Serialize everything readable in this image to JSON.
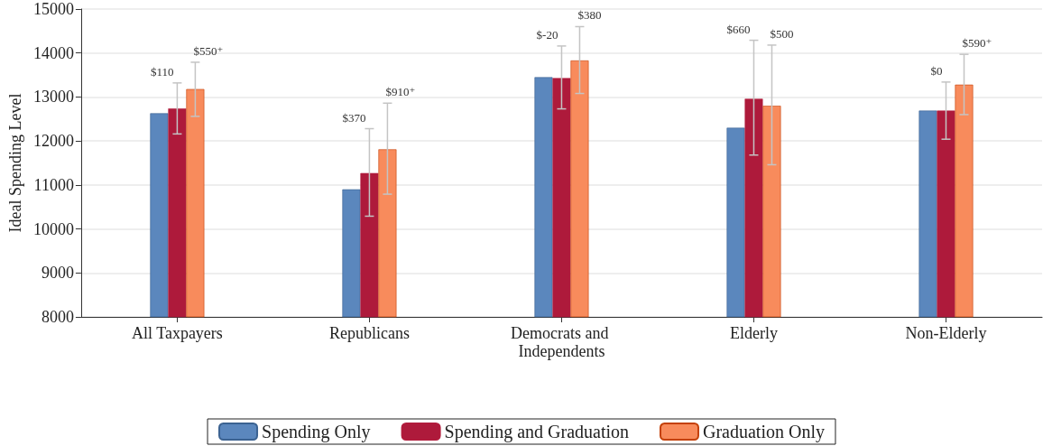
{
  "chart_data": {
    "type": "bar",
    "ylabel": "Ideal Spending Level",
    "categories": [
      "All Taxpayers",
      "Republicans",
      "Democrats and Independents",
      "Elderly",
      "Non-Elderly"
    ],
    "series": [
      {
        "name": "Spending Only",
        "color": "#5b87bd",
        "values": [
          12630,
          10900,
          13450,
          12300,
          12690
        ]
      },
      {
        "name": "Spending and Graduation",
        "color": "#ae1a3b",
        "values": [
          12740,
          11270,
          13430,
          12960,
          12690
        ],
        "errors": [
          [
            12160,
            13320
          ],
          [
            10290,
            12280
          ],
          [
            12730,
            14160
          ],
          [
            11680,
            14290
          ],
          [
            12040,
            13340
          ]
        ]
      },
      {
        "name": "Graduation Only",
        "color": "#f88b5c",
        "values": [
          13180,
          11810,
          13830,
          12800,
          13280
        ],
        "errors": [
          [
            12560,
            13790
          ],
          [
            10790,
            12860
          ],
          [
            13080,
            14600
          ],
          [
            11460,
            14180
          ],
          [
            12600,
            13970
          ]
        ]
      }
    ],
    "annotations": [
      {
        "text": "$110",
        "x": "All Taxpayers",
        "y": 13320
      },
      "$550⁺",
      {
        "text": "$370",
        "x": "Republicans",
        "y": 12280
      },
      "$910⁺",
      {
        "text": "$-20",
        "x": "Democrats and Independents",
        "y": 14160
      },
      "$380",
      {
        "text": "$660",
        "x": "Elderly",
        "y": 14290
      },
      "$500",
      {
        "text": "$0",
        "x": "Non-Elderly",
        "y": 13340
      },
      "$590⁺"
    ],
    "ylim": [
      8000,
      15000
    ],
    "yticks": [
      8000,
      9000,
      10000,
      11000,
      12000,
      13000,
      14000,
      15000
    ],
    "grid": "y",
    "legend": "bottom"
  }
}
